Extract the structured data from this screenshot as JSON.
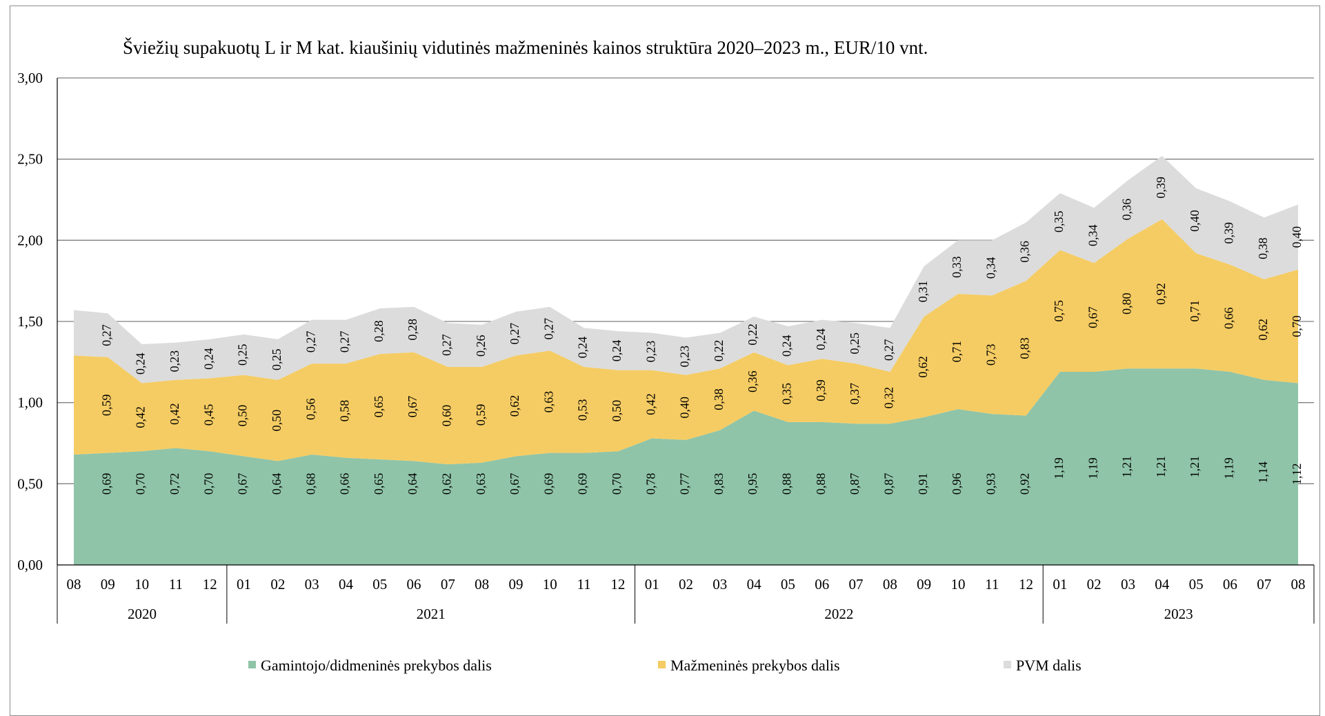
{
  "chart_data": {
    "type": "area",
    "stacked": true,
    "title": "Šviežių supakuotų L ir M kat. kiaušinių vidutinės mažmeninės kainos struktūra 2020–2023 m., EUR/10 vnt.",
    "xlabel": "",
    "ylabel": "",
    "ylim": [
      0,
      3
    ],
    "y_ticks": [
      "0,00",
      "0,50",
      "1,00",
      "1,50",
      "2,00",
      "2,50",
      "3,00"
    ],
    "y_tick_values": [
      0,
      0.5,
      1,
      1.5,
      2,
      2.5,
      3
    ],
    "grid": true,
    "legend_position": "bottom",
    "categories": [
      "08",
      "09",
      "10",
      "11",
      "12",
      "01",
      "02",
      "03",
      "04",
      "05",
      "06",
      "07",
      "08",
      "09",
      "10",
      "11",
      "12",
      "01",
      "02",
      "03",
      "04",
      "05",
      "06",
      "07",
      "08",
      "09",
      "10",
      "11",
      "12",
      "01",
      "02",
      "03",
      "04",
      "05",
      "06",
      "07",
      "08"
    ],
    "year_groups": [
      {
        "label": "2020",
        "start": 0,
        "end": 4
      },
      {
        "label": "2021",
        "start": 5,
        "end": 16
      },
      {
        "label": "2022",
        "start": 17,
        "end": 28
      },
      {
        "label": "2023",
        "start": 29,
        "end": 36
      }
    ],
    "series": [
      {
        "name": "Gamintojo/didmeninės prekybos dalis",
        "color": "#8fc4a8",
        "values": [
          0.68,
          0.69,
          0.7,
          0.72,
          0.7,
          0.67,
          0.64,
          0.68,
          0.66,
          0.65,
          0.64,
          0.62,
          0.63,
          0.67,
          0.69,
          0.69,
          0.7,
          0.78,
          0.77,
          0.83,
          0.95,
          0.88,
          0.88,
          0.87,
          0.87,
          0.91,
          0.96,
          0.93,
          0.92,
          1.19,
          1.19,
          1.21,
          1.21,
          1.21,
          1.19,
          1.14,
          1.12
        ],
        "labels": [
          "",
          "0,69",
          "0,70",
          "0,72",
          "0,70",
          "0,67",
          "0,64",
          "0,68",
          "0,66",
          "0,65",
          "0,64",
          "0,62",
          "0,63",
          "0,67",
          "0,69",
          "0,69",
          "0,70",
          "0,78",
          "0,77",
          "0,83",
          "0,95",
          "0,88",
          "0,88",
          "0,87",
          "0,87",
          "0,91",
          "0,96",
          "0,93",
          "0,92",
          "1,19",
          "1,19",
          "1,21",
          "1,21",
          "1,21",
          "1,19",
          "1,14",
          "1,12"
        ]
      },
      {
        "name": "Mažmeninės prekybos dalis",
        "color": "#f5cc63",
        "values": [
          0.61,
          0.59,
          0.42,
          0.42,
          0.45,
          0.5,
          0.5,
          0.56,
          0.58,
          0.65,
          0.67,
          0.6,
          0.59,
          0.62,
          0.63,
          0.53,
          0.5,
          0.42,
          0.4,
          0.38,
          0.36,
          0.35,
          0.39,
          0.37,
          0.32,
          0.62,
          0.71,
          0.73,
          0.83,
          0.75,
          0.67,
          0.8,
          0.92,
          0.71,
          0.66,
          0.62,
          0.7
        ],
        "labels": [
          "",
          "0,59",
          "0,42",
          "0,42",
          "0,45",
          "0,50",
          "0,50",
          "0,56",
          "0,58",
          "0,65",
          "0,67",
          "0,60",
          "0,59",
          "0,62",
          "0,63",
          "0,53",
          "0,50",
          "0,42",
          "0,40",
          "0,38",
          "0,36",
          "0,35",
          "0,39",
          "0,37",
          "0,32",
          "0,62",
          "0,71",
          "0,73",
          "0,83",
          "0,75",
          "0,67",
          "0,80",
          "0,92",
          "0,71",
          "0,66",
          "0,62",
          "0,70"
        ]
      },
      {
        "name": "PVM dalis",
        "color": "#dcdcdc",
        "values": [
          0.28,
          0.27,
          0.24,
          0.23,
          0.24,
          0.25,
          0.25,
          0.27,
          0.27,
          0.28,
          0.28,
          0.27,
          0.26,
          0.27,
          0.27,
          0.24,
          0.24,
          0.23,
          0.23,
          0.22,
          0.22,
          0.24,
          0.24,
          0.25,
          0.27,
          0.31,
          0.33,
          0.34,
          0.36,
          0.35,
          0.34,
          0.36,
          0.39,
          0.4,
          0.39,
          0.38,
          0.4
        ],
        "labels": [
          "",
          "0,27",
          "0,24",
          "0,23",
          "0,24",
          "0,25",
          "0,25",
          "0,27",
          "0,27",
          "0,28",
          "0,28",
          "0,27",
          "0,26",
          "0,27",
          "0,27",
          "0,24",
          "0,24",
          "0,23",
          "0,23",
          "0,22",
          "0,22",
          "0,24",
          "0,24",
          "0,25",
          "0,27",
          "0,31",
          "0,33",
          "0,34",
          "0,36",
          "0,35",
          "0,34",
          "0,36",
          "0,39",
          "0,40",
          "0,39",
          "0,38",
          "0,40"
        ]
      }
    ]
  }
}
